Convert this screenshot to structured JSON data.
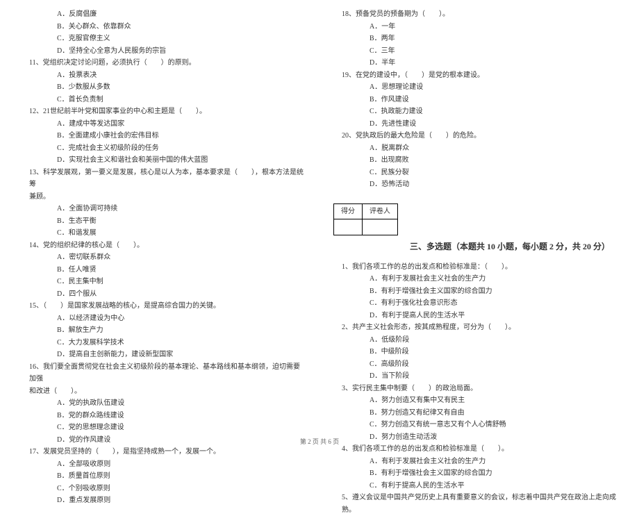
{
  "left": {
    "q10_opts": [
      "A．反腐倡廉",
      "B．关心群众、依靠群众",
      "C．克服官僚主义",
      "D．坚持全心全意为人民服务的宗旨"
    ],
    "q11": "11、党组织决定讨论问题，必须执行（　　）的原则。",
    "q11_opts": [
      "A．投票表决",
      "B．少数服从多数",
      "C．首长负责制"
    ],
    "q12": "12、21世纪前半叶党和国家事业的中心和主题是（　　）。",
    "q12_opts": [
      "A．建成中等发达国家",
      "B．全面建成小康社会的宏伟目标",
      "C．完成社会主义初级阶段的任务",
      "D．实现社会主义和谐社会和美丽中国的伟大蓝图"
    ],
    "q13": "13、科学发展观，第一要义是发展，核心是以人为本，基本要求是（　　），根本方法是统筹",
    "q13b": "兼顾。",
    "q13_opts": [
      "A．全面协调可持续",
      "B．生态平衡",
      "C．和谐发展"
    ],
    "q14": "14、党的组织纪律的核心是（　　）。",
    "q14_opts": [
      "A．密切联系群众",
      "B．任人唯贤",
      "C．民主集中制",
      "D．四个服从"
    ],
    "q15": "15、（　　）是国家发展战略的核心，是提高综合国力的关键。",
    "q15_opts": [
      "A．以经济建设为中心",
      "B．解放生产力",
      "C．大力发展科学技术",
      "D．提高自主创新能力，建设新型国家"
    ],
    "q16": "16、我们要全面贯彻党在社会主义初级阶段的基本理论、基本路线和基本纲领，迫切需要加强",
    "q16b": "和改进（　　）。",
    "q16_opts": [
      "A．党的执政队伍建设",
      "B．党的群众路线建设",
      "C．党的思想理念建设",
      "D．党的作风建设"
    ],
    "q17": "17、发展党员坚持的（　　），是指坚持成熟一个，发展一个。",
    "q17_opts": [
      "A．全部吸收原则",
      "B．质量首位原则",
      "C．个别吸收原则",
      "D．重点发展原则"
    ]
  },
  "right": {
    "q18": "18、预备党员的预备期为（　　）。",
    "q18_opts": [
      "A．一年",
      "B．两年",
      "C．三年",
      "D．半年"
    ],
    "q19": "19、在党的建设中，（　　）是党的根本建设。",
    "q19_opts": [
      "A．思想理论建设",
      "B．作风建设",
      "C．执政能力建设",
      "D．先进性建设"
    ],
    "q20": "20、党执政后的最大危险是（　　）的危险。",
    "q20_opts": [
      "A．脱离群众",
      "B．出现腐败",
      "C．民族分裂",
      "D．恐怖活动"
    ],
    "score_lbl_a": "得分",
    "score_lbl_b": "评卷人",
    "section3_title": "三、多选题（本题共 10 小题，每小题 2 分，共 20 分）",
    "m1": "1、我们各项工作的总的出发点和检验标准是：（　　）。",
    "m1_opts": [
      "A．有利于发展社会主义社会的生产力",
      "B．有利于增强社会主义国家的综合国力",
      "C．有利于强化社会意识形态",
      "D．有利于提高人民的生活水平"
    ],
    "m2": "2、共产主义社会形态，按其成熟程度，可分为（　　）。",
    "m2_opts": [
      "A．低级阶段",
      "B．中级阶段",
      "C．高级阶段",
      "D．当下阶段"
    ],
    "m3": "3、实行民主集中制要（　　）的政治局面。",
    "m3_opts": [
      "A．努力创造又有集中又有民主",
      "B．努力创造又有纪律又有自由",
      "C．努力创造又有统一意志又有个人心情舒畅",
      "D．努力创造生动活泼"
    ],
    "m4": "4、我们各项工作的总的出发点和检验标准是（　　）。",
    "m4_opts": [
      "A．有利于发展社会主义社会的生产力",
      "B．有利于增强社会主义国家的综合国力",
      "C．有利于提高人民的生活水平"
    ],
    "m5": "5、遵义会议是中国共产党历史上具有重要意义的会议，标志着中国共产党在政治上走向成熟。"
  },
  "footer": "第 2 页 共 6 页"
}
